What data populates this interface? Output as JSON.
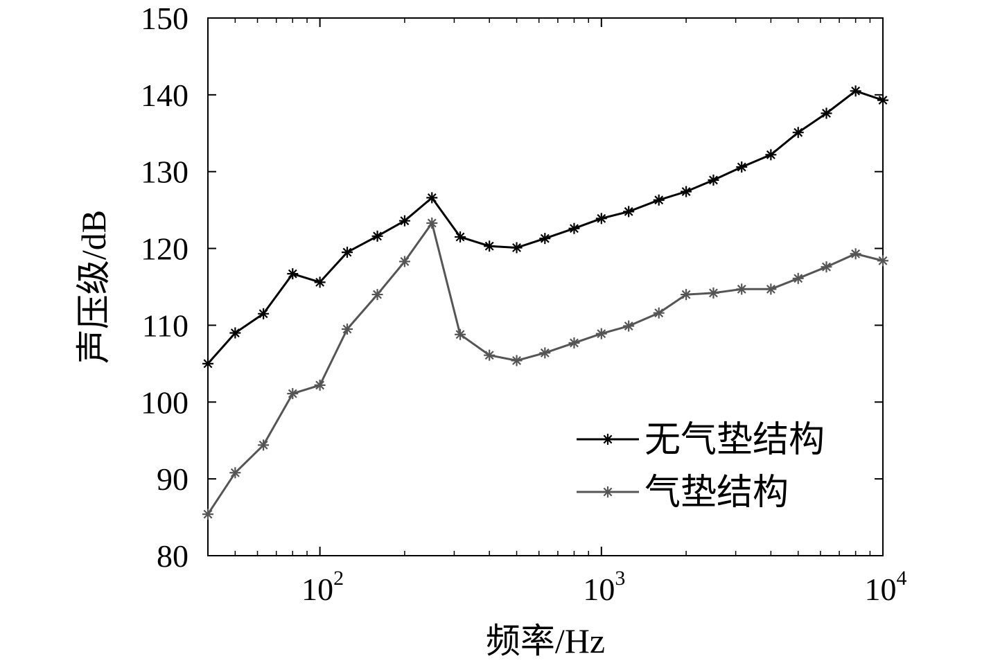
{
  "chart_data": {
    "type": "line",
    "xlabel": "频率/Hz",
    "ylabel": "声压级/dB",
    "xscale": "log",
    "xlim": [
      40,
      10000
    ],
    "ylim": [
      80,
      150
    ],
    "grid": false,
    "legend_position": "bottom-right",
    "x_ticks": [
      {
        "value": 100,
        "base": "10",
        "exp": "2"
      },
      {
        "value": 1000,
        "base": "10",
        "exp": "3"
      },
      {
        "value": 10000,
        "base": "10",
        "exp": "4"
      }
    ],
    "y_ticks": [
      80,
      90,
      100,
      110,
      120,
      130,
      140,
      150
    ],
    "x": [
      40,
      50,
      63,
      80,
      100,
      125,
      160,
      200,
      250,
      315,
      400,
      500,
      630,
      800,
      1000,
      1250,
      1600,
      2000,
      2500,
      3150,
      4000,
      5000,
      6300,
      8000,
      10000
    ],
    "series": [
      {
        "name": "无气垫结构",
        "color": "#000000",
        "values": [
          105,
          109,
          111.5,
          116.7,
          115.6,
          119.5,
          121.6,
          123.6,
          126.6,
          121.5,
          120.3,
          120.1,
          121.3,
          122.6,
          123.9,
          124.8,
          126.3,
          127.4,
          128.9,
          130.6,
          132.2,
          135.1,
          137.6,
          140.5,
          139.3
        ]
      },
      {
        "name": "气垫结构",
        "color": "#555555",
        "values": [
          85.4,
          90.8,
          94.4,
          101.1,
          102.2,
          109.5,
          114,
          118.3,
          123.3,
          108.8,
          106.1,
          105.4,
          106.4,
          107.7,
          108.9,
          109.9,
          111.6,
          114,
          114.2,
          114.7,
          114.7,
          116.1,
          117.6,
          119.3,
          118.4
        ]
      }
    ]
  }
}
